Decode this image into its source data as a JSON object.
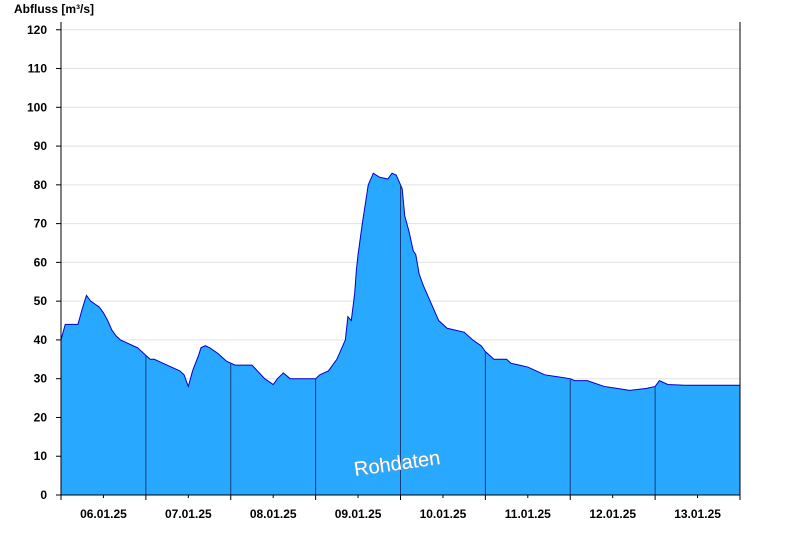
{
  "chart_data": {
    "type": "area",
    "title": "",
    "ylabel": "Abfluss [m³/s]",
    "xlabel": "",
    "ylim": [
      0,
      122
    ],
    "xlim": [
      0,
      8
    ],
    "yticks": [
      0,
      10,
      20,
      30,
      40,
      50,
      60,
      70,
      80,
      90,
      100,
      110,
      120
    ],
    "xtick_labels": [
      "06.01.25",
      "07.01.25",
      "08.01.25",
      "09.01.25",
      "10.01.25",
      "11.01.25",
      "12.01.25",
      "13.01.25"
    ],
    "day_boundaries": [
      1,
      2,
      3,
      4,
      5,
      6,
      7
    ],
    "grid": "horizontal",
    "fill_color": "#29a8ff",
    "line_color": "#0000cc",
    "watermark": "Rohdaten",
    "series": [
      {
        "x": [
          0,
          0.05,
          0.2,
          0.25,
          0.3,
          0.35,
          0.45,
          0.5,
          0.55,
          0.6,
          0.65,
          0.7,
          0.75,
          0.8,
          0.85,
          0.9,
          0.95,
          1.0,
          1.05,
          1.1,
          1.2,
          1.4,
          1.45,
          1.5,
          1.55,
          1.62,
          1.65,
          1.7,
          1.75,
          1.85,
          1.9,
          1.95,
          2.05,
          2.15,
          2.25,
          2.4,
          2.5,
          2.55,
          2.62,
          2.7,
          2.75,
          2.85,
          3.0,
          3.05,
          3.15,
          3.25,
          3.35,
          3.38,
          3.42,
          3.46,
          3.48,
          3.5,
          3.55,
          3.62,
          3.68,
          3.75,
          3.85,
          3.9,
          3.95,
          4.02,
          4.05,
          4.1,
          4.15,
          4.18,
          4.22,
          4.27,
          4.35,
          4.45,
          4.55,
          4.65,
          4.75,
          4.85,
          4.95,
          5.0,
          5.1,
          5.25,
          5.3,
          5.4,
          5.5,
          5.6,
          5.7,
          5.85,
          6.0,
          6.05,
          6.2,
          6.4,
          6.55,
          6.7,
          6.9,
          7.0,
          7.05,
          7.15,
          7.35,
          7.42,
          7.55,
          7.62,
          7.75,
          8.0
        ],
        "values": [
          40,
          44,
          44,
          48,
          51.5,
          50,
          48.5,
          47,
          45,
          42.5,
          41,
          40,
          39.5,
          39,
          38.5,
          38,
          37,
          36,
          35,
          35,
          34,
          32,
          31,
          28,
          32,
          36,
          38,
          38.5,
          38,
          36.5,
          35.5,
          34.5,
          33.5,
          33.5,
          33.5,
          30,
          28.5,
          30,
          31.5,
          30,
          30,
          30,
          30,
          31,
          32,
          35,
          40,
          46,
          45,
          52,
          58,
          62,
          70,
          80,
          83,
          82,
          81.5,
          83,
          82.5,
          79,
          72,
          68,
          63,
          62,
          57,
          54,
          50,
          45,
          43,
          42.5,
          42,
          40,
          38.5,
          37,
          35,
          35,
          34,
          33.5,
          33,
          32,
          31,
          30.5,
          30,
          29.5,
          29.5,
          28,
          27.5,
          27,
          27.5,
          28,
          29.5,
          28.5,
          28.3,
          28.3,
          28.3,
          28.3,
          28.3,
          28.3
        ]
      }
    ]
  }
}
